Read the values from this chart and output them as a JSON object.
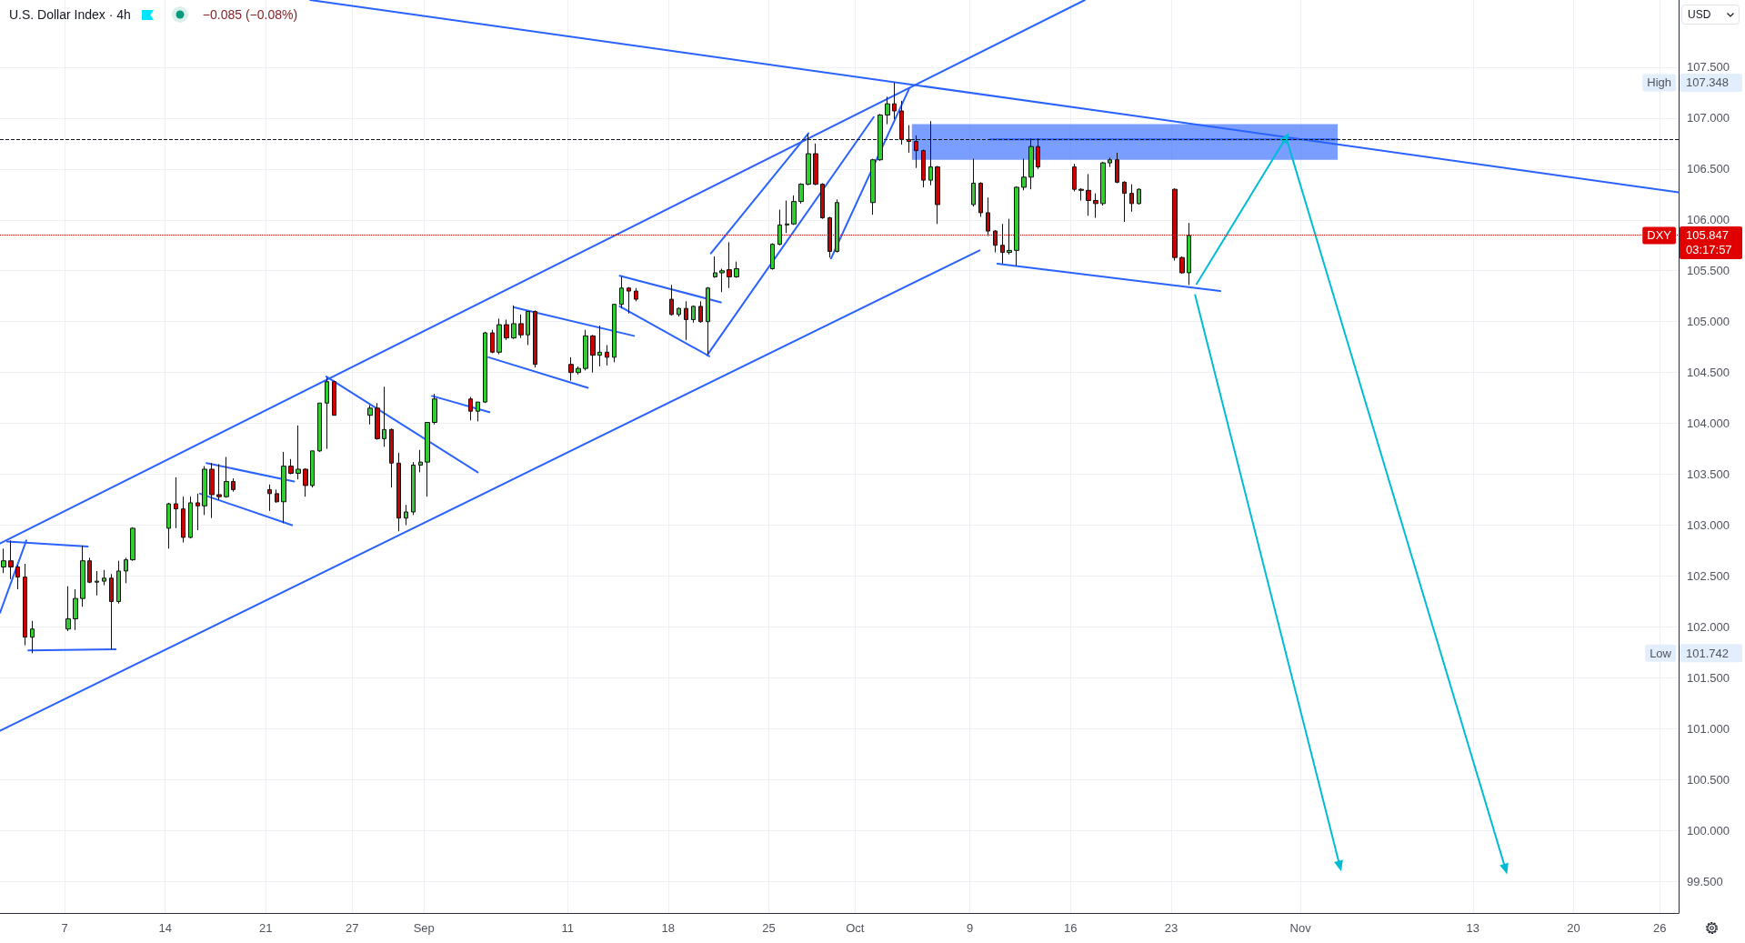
{
  "chart_data": {
    "type": "candlestick",
    "title": "U.S. Dollar Index · 4h",
    "subtitle": "−0.085 (−0.08%)",
    "ylabel": "USD",
    "x": [
      "--08-02T18:00",
      "--08-03T06:00",
      "--08-03T18:00",
      "--08-04T06:00",
      "--08-04T18:00",
      "--08-07T06:00",
      "--08-07T18:00",
      "--08-08T06:00",
      "--08-08T18:00",
      "--08-09T06:00",
      "--08-09T18:00",
      "--08-10T06:00",
      "--08-10T18:00",
      "--08-11T06:00",
      "--08-11T18:00",
      "--08-14T06:00",
      "--08-14T18:00",
      "--08-15T06:00",
      "--08-15T18:00",
      "--08-16T06:00",
      "--08-16T18:00",
      "--08-17T06:00",
      "--08-17T18:00",
      "--08-18T06:00",
      "--08-18T18:00",
      "--08-21T06:00",
      "--08-21T18:00",
      "--08-22T06:00",
      "--08-22T18:00",
      "--08-23T06:00",
      "--08-23T18:00",
      "--08-24T06:00",
      "--08-24T18:00",
      "--08-25T06:00",
      "--08-25T18:00",
      "--08-28T06:00",
      "--08-28T18:00",
      "--08-29T06:00",
      "--08-29T18:00",
      "--08-30T06:00",
      "--08-30T18:00",
      "--08-31T06:00",
      "--08-31T18:00",
      "--09-01T06:00",
      "--09-01T18:00",
      "--09-04T06:00",
      "--09-04T18:00",
      "--09-05T06:00",
      "--09-05T18:00",
      "--09-06T06:00",
      "--09-06T18:00",
      "--09-07T06:00",
      "--09-07T18:00",
      "--09-08T06:00",
      "--09-08T18:00",
      "--09-11T06:00",
      "--09-11T18:00",
      "--09-12T06:00",
      "--09-12T18:00",
      "--09-13T06:00",
      "--09-13T18:00",
      "--09-14T06:00",
      "--09-14T18:00",
      "--09-15T06:00",
      "--09-15T18:00",
      "--09-18T06:00",
      "--09-18T18:00",
      "--09-19T06:00",
      "--09-19T18:00",
      "--09-20T06:00",
      "--09-20T18:00",
      "--09-21T06:00",
      "--09-21T18:00",
      "--09-22T06:00",
      "--09-22T18:00",
      "--09-25T06:00",
      "--09-25T18:00",
      "--09-26T06:00",
      "--09-26T18:00",
      "--09-27T06:00",
      "--09-27T18:00",
      "--09-28T06:00",
      "--09-28T18:00",
      "--09-29T06:00",
      "--09-29T18:00",
      "--10-02T06:00",
      "--10-02T18:00",
      "--10-03T06:00",
      "--10-03T18:00",
      "--10-04T06:00",
      "--10-04T18:00",
      "--10-05T06:00",
      "--10-05T18:00",
      "--10-06T06:00",
      "--10-06T18:00",
      "--10-09T06:00",
      "--10-09T18:00",
      "--10-10T06:00",
      "--10-10T18:00",
      "--10-11T06:00",
      "--10-11T18:00",
      "--10-12T06:00",
      "--10-12T18:00",
      "--10-13T06:00",
      "--10-13T18:00",
      "--10-16T06:00",
      "--10-16T18:00",
      "--10-17T06:00",
      "--10-17T18:00",
      "--10-18T06:00",
      "--10-18T18:00",
      "--10-19T06:00",
      "--10-19T18:00",
      "--10-20T06:00",
      "--10-20T18:00",
      "--10-23T06:00",
      "--10-23T18:00",
      "--10-24T06:00"
    ],
    "ohlc": [
      [
        102.59,
        102.77,
        102.53,
        102.65
      ],
      [
        102.65,
        102.85,
        102.47,
        102.59
      ],
      [
        102.59,
        102.61,
        102.37,
        102.49
      ],
      [
        102.49,
        102.62,
        101.82,
        101.9
      ],
      [
        101.9,
        102.06,
        101.742,
        101.98
      ],
      [
        101.98,
        102.4,
        101.96,
        102.08
      ],
      [
        102.08,
        102.37,
        101.97,
        102.28
      ],
      [
        102.28,
        102.8,
        102.2,
        102.65
      ],
      [
        102.65,
        102.68,
        102.43,
        102.44
      ],
      [
        102.44,
        102.55,
        102.31,
        102.45
      ],
      [
        102.45,
        102.56,
        102.41,
        102.48
      ],
      [
        102.48,
        102.52,
        101.78,
        102.25
      ],
      [
        102.25,
        102.65,
        102.23,
        102.55
      ],
      [
        102.55,
        102.68,
        102.43,
        102.66
      ],
      [
        102.66,
        102.98,
        102.65,
        102.97
      ],
      [
        102.97,
        103.22,
        102.77,
        103.21
      ],
      [
        103.21,
        103.47,
        102.97,
        103.16
      ],
      [
        103.16,
        103.28,
        102.83,
        102.88
      ],
      [
        102.88,
        103.28,
        102.87,
        103.22
      ],
      [
        103.22,
        103.31,
        102.95,
        103.19
      ],
      [
        103.19,
        103.58,
        103.1,
        103.55
      ],
      [
        103.55,
        103.61,
        103.07,
        103.3
      ],
      [
        103.3,
        103.6,
        103.25,
        103.28
      ],
      [
        103.28,
        103.67,
        103.27,
        103.43
      ],
      [
        103.43,
        103.46,
        103.33,
        103.35
      ],
      [
        103.35,
        103.4,
        103.14,
        103.31
      ],
      [
        103.31,
        103.35,
        103.22,
        103.23
      ],
      [
        103.23,
        103.72,
        103.02,
        103.58
      ],
      [
        103.58,
        103.65,
        103.5,
        103.51
      ],
      [
        103.51,
        103.98,
        103.45,
        103.55
      ],
      [
        103.55,
        103.56,
        103.28,
        103.39
      ],
      [
        103.39,
        103.73,
        103.37,
        103.73
      ],
      [
        103.73,
        104.2,
        103.72,
        104.2
      ],
      [
        104.2,
        104.45,
        103.75,
        104.41
      ],
      [
        104.41,
        104.42,
        104.08,
        104.08
      ],
      [
        104.08,
        104.18,
        103.99,
        104.15
      ],
      [
        104.15,
        104.2,
        103.84,
        103.85
      ],
      [
        103.85,
        104.36,
        103.77,
        103.94
      ],
      [
        103.94,
        103.95,
        103.37,
        103.61
      ],
      [
        103.61,
        103.71,
        102.94,
        103.07
      ],
      [
        103.07,
        103.2,
        103.0,
        103.13
      ],
      [
        103.13,
        103.62,
        103.1,
        103.59
      ],
      [
        103.59,
        103.74,
        103.52,
        103.62
      ],
      [
        103.62,
        104.01,
        103.28,
        104.01
      ],
      [
        104.01,
        104.29,
        103.99,
        104.24
      ],
      [
        104.24,
        104.26,
        104.03,
        104.12
      ],
      [
        104.12,
        104.21,
        104.02,
        104.21
      ],
      [
        104.21,
        104.9,
        104.2,
        104.89
      ],
      [
        104.89,
        104.92,
        104.69,
        104.7
      ],
      [
        104.7,
        105.03,
        104.68,
        104.97
      ],
      [
        104.97,
        105.02,
        104.82,
        104.84
      ],
      [
        104.84,
        105.16,
        104.83,
        104.98
      ],
      [
        104.98,
        105.07,
        104.84,
        104.87
      ],
      [
        104.87,
        105.1,
        104.77,
        105.1
      ],
      [
        105.1,
        105.11,
        104.55,
        104.58
      ],
      [
        104.58,
        104.65,
        104.42,
        104.5
      ],
      [
        104.5,
        104.56,
        104.48,
        104.54
      ],
      [
        104.54,
        104.92,
        104.52,
        104.86
      ],
      [
        104.86,
        104.87,
        104.5,
        104.67
      ],
      [
        104.67,
        104.96,
        104.56,
        104.7
      ],
      [
        104.7,
        104.77,
        104.57,
        104.65
      ],
      [
        104.65,
        105.17,
        104.6,
        105.17
      ],
      [
        105.17,
        105.44,
        105.13,
        105.33
      ],
      [
        105.33,
        105.34,
        105.08,
        105.3
      ],
      [
        105.3,
        105.33,
        105.2,
        105.22
      ],
      [
        105.22,
        105.36,
        105.06,
        105.07
      ],
      [
        105.07,
        105.14,
        105.05,
        105.13
      ],
      [
        105.13,
        105.2,
        104.82,
        105.02
      ],
      [
        105.02,
        105.16,
        104.99,
        105.15
      ],
      [
        105.15,
        105.2,
        104.99,
        105.0
      ],
      [
        105.0,
        105.34,
        104.68,
        105.33
      ],
      [
        105.44,
        105.64,
        105.43,
        105.48
      ],
      [
        105.48,
        105.52,
        105.29,
        105.5
      ],
      [
        105.51,
        105.78,
        105.33,
        105.44
      ],
      [
        105.44,
        105.59,
        105.43,
        105.52
      ],
      [
        105.52,
        105.77,
        105.51,
        105.76
      ],
      [
        105.76,
        106.1,
        105.75,
        105.95
      ],
      [
        105.95,
        106.19,
        105.87,
        105.96
      ],
      [
        105.96,
        106.24,
        105.95,
        106.18
      ],
      [
        106.18,
        106.36,
        106.16,
        106.35
      ],
      [
        106.35,
        106.84,
        106.34,
        106.65
      ],
      [
        106.65,
        106.75,
        106.34,
        106.35
      ],
      [
        106.35,
        106.36,
        106.01,
        106.02
      ],
      [
        106.02,
        106.03,
        105.63,
        105.69
      ],
      [
        105.69,
        106.2,
        105.68,
        106.17
      ],
      [
        106.17,
        106.6,
        106.05,
        106.59
      ],
      [
        106.59,
        107.04,
        106.58,
        107.03
      ],
      [
        107.03,
        107.21,
        106.94,
        107.14
      ],
      [
        107.14,
        107.348,
        106.99,
        107.07
      ],
      [
        107.07,
        107.17,
        106.74,
        106.79
      ],
      [
        106.79,
        106.93,
        106.66,
        106.77
      ],
      [
        106.77,
        106.83,
        106.51,
        106.68
      ],
      [
        106.68,
        106.69,
        106.32,
        106.39
      ],
      [
        106.39,
        106.97,
        106.34,
        106.52
      ],
      [
        106.52,
        106.53,
        105.96,
        106.15
      ],
      [
        106.15,
        106.6,
        106.13,
        106.36
      ],
      [
        106.36,
        106.37,
        106.03,
        106.07
      ],
      [
        106.07,
        106.22,
        105.84,
        105.89
      ],
      [
        105.89,
        105.9,
        105.68,
        105.75
      ],
      [
        105.75,
        105.96,
        105.57,
        105.68
      ],
      [
        105.68,
        106.01,
        105.66,
        105.7
      ],
      [
        105.7,
        106.33,
        105.55,
        106.32
      ],
      [
        106.32,
        106.6,
        106.29,
        106.42
      ],
      [
        106.42,
        106.8,
        106.3,
        106.72
      ],
      [
        106.72,
        106.8,
        106.5,
        106.52
      ],
      [
        106.52,
        106.55,
        106.28,
        106.3
      ],
      [
        106.3,
        106.31,
        106.19,
        106.29
      ],
      [
        106.29,
        106.45,
        106.04,
        106.19
      ],
      [
        106.19,
        106.26,
        106.02,
        106.16
      ],
      [
        106.16,
        106.57,
        106.14,
        106.56
      ],
      [
        106.56,
        106.61,
        106.52,
        106.59
      ],
      [
        106.59,
        106.66,
        106.36,
        106.37
      ],
      [
        106.37,
        106.38,
        105.98,
        106.26
      ],
      [
        106.26,
        106.35,
        106.08,
        106.16
      ],
      [
        106.16,
        106.31,
        106.15,
        106.3
      ],
      [
        106.3,
        106.31,
        105.6,
        105.63
      ],
      [
        105.63,
        105.64,
        105.47,
        105.48
      ],
      [
        105.48,
        105.97,
        105.36,
        105.847
      ]
    ],
    "colors": [
      "#32cd32",
      "#cc0000",
      "#cc0000",
      "#cc0000",
      "#32cd32",
      "#32cd32",
      "#32cd32",
      "#32cd32",
      "#cc0000",
      "#32cd32",
      "#32cd32",
      "#cc0000",
      "#32cd32",
      "#32cd32",
      "#32cd32",
      "#32cd32",
      "#cc0000",
      "#cc0000",
      "#32cd32",
      "#cc0000",
      "#32cd32",
      "#cc0000",
      "#cc0000",
      "#32cd32",
      "#cc0000",
      "#cc0000",
      "#cc0000",
      "#32cd32",
      "#cc0000",
      "#32cd32",
      "#cc0000",
      "#32cd32",
      "#32cd32",
      "#32cd32",
      "#cc0000",
      "#32cd32",
      "#cc0000",
      "#32cd32",
      "#cc0000",
      "#cc0000",
      "#32cd32",
      "#32cd32",
      "#32cd32",
      "#32cd32",
      "#32cd32",
      "#cc0000",
      "#32cd32",
      "#32cd32",
      "#cc0000",
      "#32cd32",
      "#cc0000",
      "#32cd32",
      "#cc0000",
      "#32cd32",
      "#cc0000",
      "#cc0000",
      "#32cd32",
      "#32cd32",
      "#cc0000",
      "#32cd32",
      "#cc0000",
      "#32cd32",
      "#32cd32",
      "#cc0000",
      "#cc0000",
      "#cc0000",
      "#32cd32",
      "#cc0000",
      "#32cd32",
      "#cc0000",
      "#32cd32",
      "#32cd32",
      "#32cd32",
      "#cc0000",
      "#32cd32",
      "#32cd32",
      "#32cd32",
      "#32cd32",
      "#32cd32",
      "#32cd32",
      "#32cd32",
      "#cc0000",
      "#cc0000",
      "#cc0000",
      "#32cd32",
      "#32cd32",
      "#32cd32",
      "#32cd32",
      "#cc0000",
      "#cc0000",
      "#cc0000",
      "#cc0000",
      "#cc0000",
      "#32cd32",
      "#cc0000",
      "#32cd32",
      "#cc0000",
      "#cc0000",
      "#cc0000",
      "#cc0000",
      "#32cd32",
      "#32cd32",
      "#32cd32",
      "#32cd32",
      "#cc0000",
      "#cc0000",
      "#cc0000",
      "#cc0000",
      "#cc0000",
      "#32cd32",
      "#32cd32",
      "#cc0000",
      "#cc0000",
      "#cc0000",
      "#32cd32",
      "#cc0000",
      "#cc0000",
      "#32cd32"
    ],
    "xlim": [
      "--08-02T12:00",
      "--11-27T07:30"
    ],
    "ylim": [
      99.19,
      108.16
    ],
    "xticks": [
      {
        "value": "--08-07",
        "label": "7"
      },
      {
        "value": "--08-14",
        "label": "14"
      },
      {
        "value": "--08-21",
        "label": "21"
      },
      {
        "value": "--08-27",
        "label": "27"
      },
      {
        "value": "--09-01",
        "label": "Sep"
      },
      {
        "value": "--09-11",
        "label": "11"
      },
      {
        "value": "--09-18",
        "label": "18"
      },
      {
        "value": "--09-25",
        "label": "25"
      },
      {
        "value": "--10-01",
        "label": "Oct"
      },
      {
        "value": "--10-09",
        "label": "9"
      },
      {
        "value": "--10-16",
        "label": "16"
      },
      {
        "value": "--10-23",
        "label": "23"
      },
      {
        "value": "--11-01",
        "label": "Nov"
      },
      {
        "value": "--11-13",
        "label": "13"
      },
      {
        "value": "--11-20",
        "label": "20"
      },
      {
        "value": "--11-26",
        "label": "26"
      }
    ],
    "yticks": [
      {
        "value": 99.5,
        "label": "99.500"
      },
      {
        "value": 100,
        "label": "100.000"
      },
      {
        "value": 100.5,
        "label": "100.500"
      },
      {
        "value": 101,
        "label": "101.000"
      },
      {
        "value": 101.5,
        "label": "101.500"
      },
      {
        "value": 102,
        "label": "102.000"
      },
      {
        "value": 102.5,
        "label": "102.500"
      },
      {
        "value": 103,
        "label": "103.000"
      },
      {
        "value": 103.5,
        "label": "103.500"
      },
      {
        "value": 104,
        "label": "104.000"
      },
      {
        "value": 104.5,
        "label": "104.500"
      },
      {
        "value": 105,
        "label": "105.000"
      },
      {
        "value": 105.5,
        "label": "105.500"
      },
      {
        "value": 106,
        "label": "106.000"
      },
      {
        "value": 106.5,
        "label": "106.500"
      },
      {
        "value": 107,
        "label": "107.000"
      },
      {
        "value": 107.5,
        "label": "107.500"
      }
    ],
    "grid": true,
    "series": [
      {
        "type": "line",
        "color": "#2962ff",
        "x": [
          "--10-04T23:00",
          "--10-10T09:00",
          "--11-03T14:00"
        ],
        "values": [
          null,
          106.79,
          106.79
        ],
        "lower": [
          106.59,
          106.59,
          106.59
        ],
        "upper": [
          106.94,
          106.94,
          106.94
        ]
      },
      {
        "type": "line",
        "color": "#2962ff",
        "x": [
          "--08-02T12:00",
          "--10-16T23:45"
        ],
        "values": [
          102.82,
          108.16
        ]
      },
      {
        "type": "line",
        "color": "#2962ff",
        "x": [
          "--08-02T12:00",
          "--10-09T16:00"
        ],
        "values": [
          100.98,
          105.7
        ]
      },
      {
        "type": "line",
        "color": "#2962ff",
        "x": [
          "--08-24T02:00",
          "--11-27T07:30"
        ],
        "values": [
          108.16,
          106.27
        ]
      },
      {
        "type": "line",
        "color": "#2962ff",
        "x": [
          "--08-02T12:00",
          "--08-04T08:00"
        ],
        "values": [
          102.14,
          102.85
        ]
      },
      {
        "type": "line",
        "color": "#2962ff",
        "x": [
          "--08-03T00:00",
          "--08-08T14:30"
        ],
        "values": [
          102.84,
          102.79
        ]
      },
      {
        "type": "line",
        "color": "#2962ff",
        "x": [
          "--08-04T11:15",
          "--08-10T13:20"
        ],
        "values": [
          101.77,
          101.78
        ]
      },
      {
        "type": "line",
        "color": "#2962ff",
        "x": [
          "--08-16T21:00",
          "--08-22T23:15"
        ],
        "values": [
          103.61,
          103.43
        ]
      },
      {
        "type": "line",
        "color": "#2962ff",
        "x": [
          "--08-16T10:00",
          "--08-22T19:40"
        ],
        "values": [
          103.31,
          103.0
        ]
      },
      {
        "type": "line",
        "color": "#2962ff",
        "x": [
          "--08-25T05:00",
          "--09-04T17:45"
        ],
        "values": [
          104.46,
          103.52
        ]
      },
      {
        "type": "line",
        "color": "#2962ff",
        "x": [
          "--09-01T13:25",
          "--09-05T13:25"
        ],
        "values": [
          104.27,
          104.11
        ]
      },
      {
        "type": "line",
        "color": "#2962ff",
        "x": [
          "--09-07T06:45",
          "--09-15T15:00"
        ],
        "values": [
          105.14,
          104.86
        ]
      },
      {
        "type": "line",
        "color": "#2962ff",
        "x": [
          "--09-05T11:45",
          "--09-12T09:50"
        ],
        "values": [
          104.65,
          104.35
        ]
      },
      {
        "type": "line",
        "color": "#2962ff",
        "x": [
          "--09-14T15:00",
          "--09-21T16:00"
        ],
        "values": [
          105.45,
          105.19
        ]
      },
      {
        "type": "line",
        "color": "#2962ff",
        "x": [
          "--09-14T15:00",
          "--09-20T20:40"
        ],
        "values": [
          105.15,
          104.66
        ]
      },
      {
        "type": "line",
        "color": "#2962ff",
        "x": [
          "--09-20T23:15",
          "--09-27T18:15"
        ],
        "values": [
          105.67,
          106.85
        ]
      },
      {
        "type": "line",
        "color": "#2962ff",
        "x": [
          "--09-20T17:00",
          "--10-02T07:10"
        ],
        "values": [
          104.67,
          107.01
        ]
      },
      {
        "type": "line",
        "color": "#2962ff",
        "x": [
          "--09-29T07:50",
          "--10-04T18:30"
        ],
        "values": [
          105.62,
          107.29
        ]
      },
      {
        "type": "line",
        "color": "#2962ff",
        "x": [
          "--10-10T21:40",
          "--10-26T10:00"
        ],
        "values": [
          105.57,
          105.3
        ]
      },
      {
        "type": "line",
        "color": "#00bcd4",
        "marker": "triangle",
        "x": [
          "--10-24T18:30",
          "--10-31T00:00",
          "--11-15T06:30"
        ],
        "values": [
          105.37,
          106.81,
          99.62
        ]
      },
      {
        "type": "line",
        "color": "#00bcd4",
        "marker": "triangle",
        "x": [
          "--10-24T16:00",
          "--11-03T17:45"
        ],
        "values": [
          105.26,
          99.65
        ]
      }
    ],
    "ref_lines": [
      {
        "axis": "y",
        "value": 106.79,
        "color": "#131722",
        "line_style": "dashed"
      },
      {
        "axis": "y",
        "value": 105.847,
        "label": "DXY",
        "color": "#e00000",
        "line_style": "dotted"
      }
    ],
    "annotations": [
      "105.847",
      "03:17:57",
      {
        "text": "High",
        "y": 107.348
      },
      "107.348",
      {
        "text": "Low",
        "y": 101.742
      },
      "101.742"
    ]
  }
}
